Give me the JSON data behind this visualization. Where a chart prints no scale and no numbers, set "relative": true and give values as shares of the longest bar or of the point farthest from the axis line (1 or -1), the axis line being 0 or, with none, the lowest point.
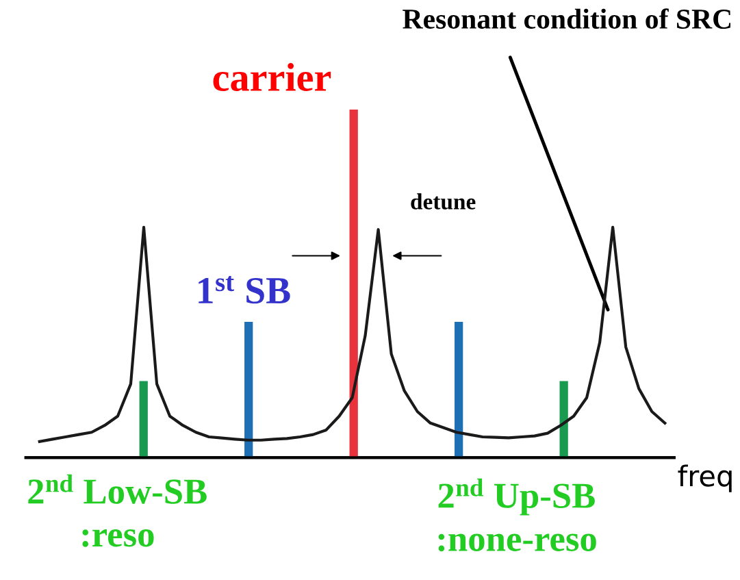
{
  "chart_data": [
    {
      "type": "line",
      "relative": true,
      "line_style": "solid",
      "marker": "none",
      "categories": [
        null,
        null,
        null,
        null,
        null,
        null,
        null,
        null,
        null,
        null,
        null,
        null,
        null,
        null,
        null,
        null,
        null,
        null,
        null,
        null,
        null,
        null,
        null,
        null,
        null,
        null,
        null,
        null,
        null,
        null,
        null,
        null,
        null,
        null,
        null,
        null,
        null,
        null,
        null,
        null,
        null,
        null,
        null,
        null,
        null,
        null,
        null,
        null,
        null
      ],
      "series": [
        {
          "color": "#1a1a1a",
          "values": [
            0.07,
            0.08,
            0.09,
            0.1,
            0.11,
            0.14,
            0.18,
            0.32,
            1.0,
            0.32,
            0.18,
            0.14,
            0.11,
            0.09,
            0.085,
            0.08,
            0.076,
            0.076,
            0.08,
            0.083,
            0.09,
            0.1,
            0.12,
            0.18,
            0.26,
            0.53,
            0.99,
            0.45,
            0.29,
            0.2,
            0.15,
            0.13,
            0.11,
            0.1,
            0.09,
            0.088,
            0.086,
            0.09,
            0.094,
            0.106,
            0.14,
            0.18,
            0.26,
            0.5,
            1,
            0.48,
            0.3,
            0.2,
            0.15
          ]
        }
      ]
    },
    {
      "type": "bar",
      "relative": true,
      "xlabel": "freq",
      "categories": [
        null,
        null,
        null,
        null,
        null
      ],
      "colors": [
        "#1a9a50",
        "#1f6fb4",
        "#e8323c",
        "#1f6fb4",
        "#1a9a50"
      ],
      "values": [
        0.22,
        0.39,
        1,
        0.39,
        0.22
      ],
      "annotations": [
        "carrier",
        "1$^{st}$ SB",
        "2$^{nd}$ Low-SB\n:reso",
        "2$^{nd}$ Up-SB\n:none-reso",
        "detune",
        "Resonant condition of SRC"
      ]
    }
  ]
}
